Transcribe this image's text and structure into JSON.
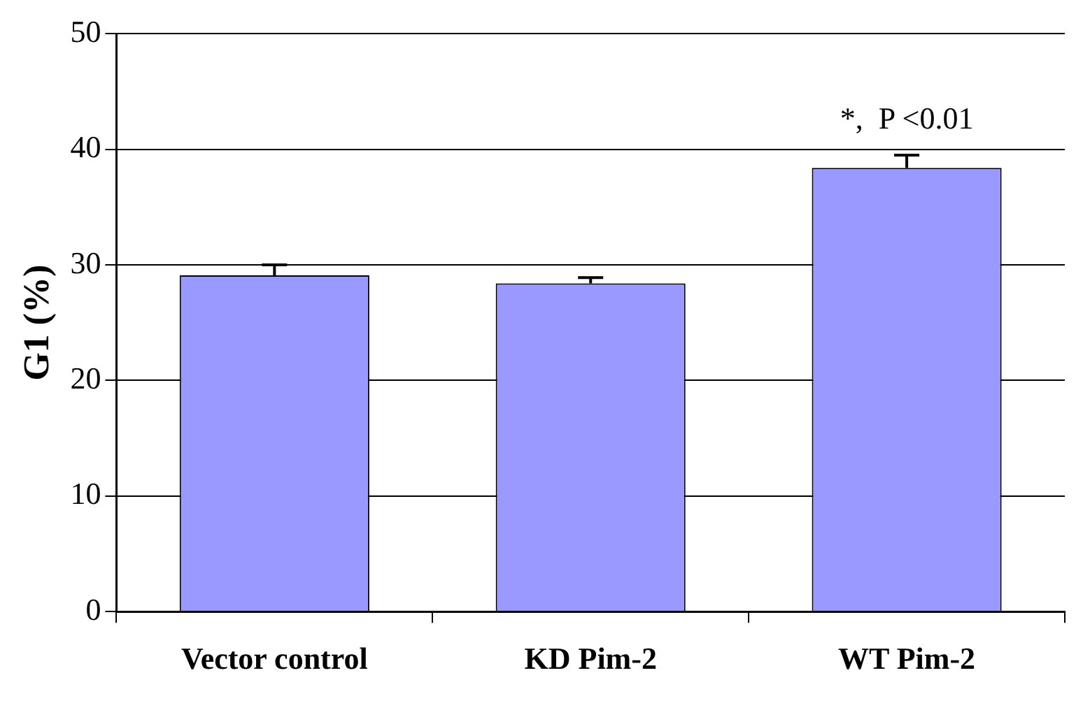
{
  "chart_data": {
    "type": "bar",
    "ylabel": "G1 (%)",
    "categories": [
      "Vector control",
      "KD Pim-2",
      "WT Pim-2"
    ],
    "values": [
      29.1,
      28.4,
      38.4
    ],
    "errors": [
      0.9,
      0.5,
      1.1
    ],
    "color": "#9999ff",
    "ylim": [
      0,
      50
    ],
    "yticks": [
      0,
      10,
      20,
      30,
      40,
      50
    ],
    "grid": "y",
    "annotations": [
      "*,  P <0.01"
    ]
  }
}
